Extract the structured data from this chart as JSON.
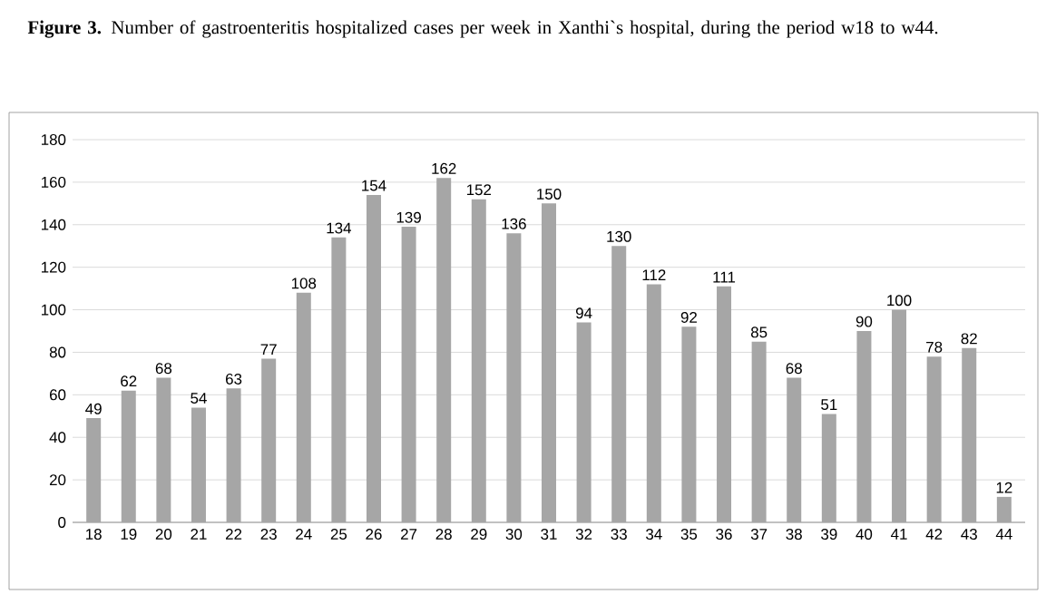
{
  "chart_data": {
    "type": "bar",
    "title": "**Figure 3.** Number of gastroenteritis hospitalized cases per week in Xanthi`s hospital, during the period w18 to w44.",
    "categories": [
      "18",
      "19",
      "20",
      "21",
      "22",
      "23",
      "24",
      "25",
      "26",
      "27",
      "28",
      "29",
      "30",
      "31",
      "32",
      "33",
      "34",
      "35",
      "36",
      "37",
      "38",
      "39",
      "40",
      "41",
      "42",
      "43",
      "44"
    ],
    "values": [
      49,
      62,
      68,
      54,
      63,
      77,
      108,
      134,
      154,
      139,
      162,
      152,
      136,
      150,
      94,
      130,
      112,
      92,
      111,
      85,
      68,
      51,
      90,
      100,
      78,
      82,
      12
    ],
    "color": "#a6a6a6",
    "ylim": [
      0,
      180
    ],
    "yticks": [
      0,
      20,
      40,
      60,
      80,
      100,
      120,
      140,
      160,
      180
    ],
    "grid": "y",
    "data_labels": true
  }
}
